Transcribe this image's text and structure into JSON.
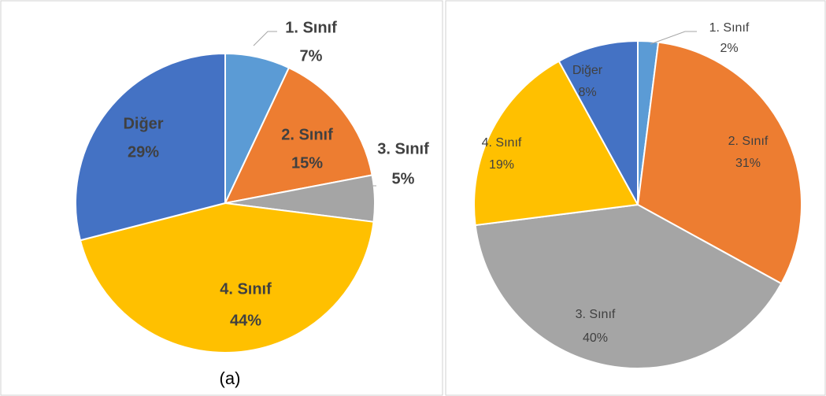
{
  "chart_data": [
    {
      "type": "pie",
      "caption": "(a)",
      "categories": [
        "1. Sınıf",
        "2. Sınıf",
        "3. Sınıf",
        "4. Sınıf",
        "Diğer"
      ],
      "values": [
        7,
        15,
        5,
        44,
        29
      ],
      "value_labels": [
        "7%",
        "15%",
        "5%",
        "44%",
        "29%"
      ],
      "colors": [
        "#5b9bd5",
        "#ed7d31",
        "#a5a5a5",
        "#ffc000",
        "#4472c4"
      ]
    },
    {
      "type": "pie",
      "categories": [
        "1. Sınıf",
        "2. Sınıf",
        "3. Sınıf",
        "4. Sınıf",
        "Diğer"
      ],
      "values": [
        2,
        31,
        40,
        19,
        8
      ],
      "value_labels": [
        "2%",
        "31%",
        "40%",
        "19%",
        "8%"
      ],
      "colors": [
        "#5b9bd5",
        "#ed7d31",
        "#a5a5a5",
        "#ffc000",
        "#4472c4"
      ]
    }
  ]
}
